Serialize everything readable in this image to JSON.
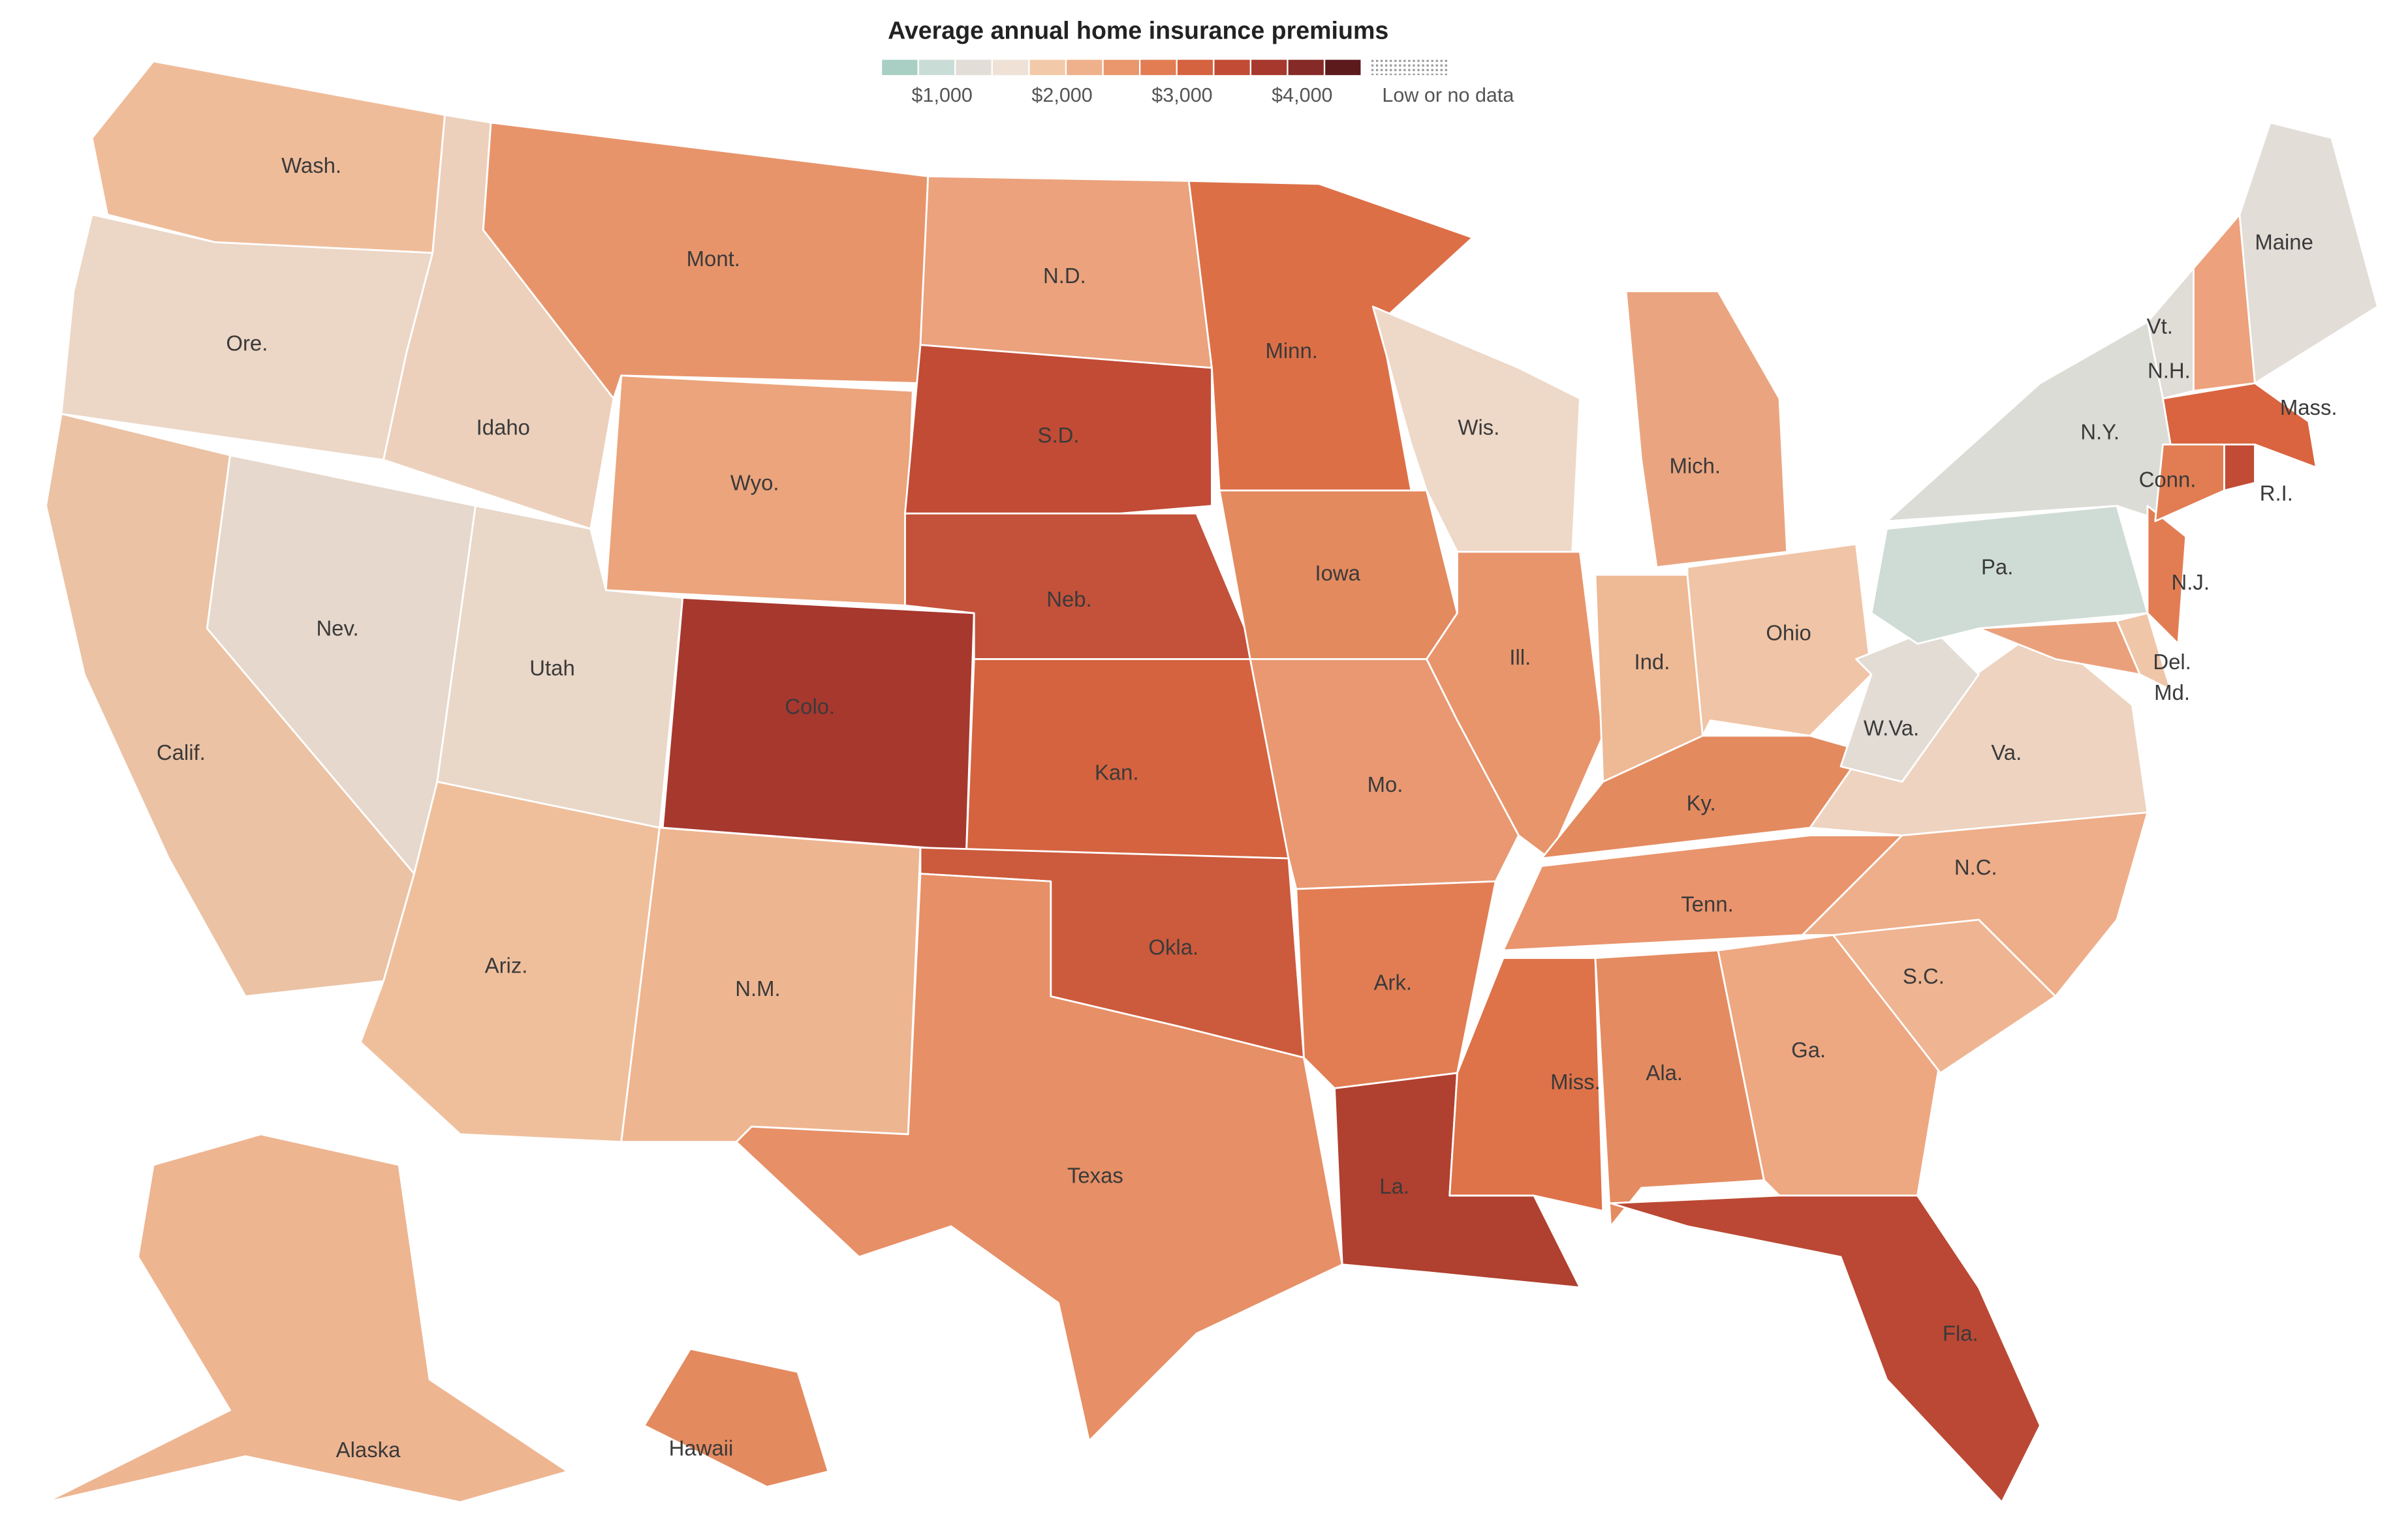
{
  "title": "Average annual home insurance premiums",
  "legend": {
    "colors": [
      "#a9cfc4",
      "#c9ddd6",
      "#e2ddd7",
      "#efe1d5",
      "#f3caa9",
      "#efb18c",
      "#ea976d",
      "#e27d53",
      "#d5633f",
      "#c14b35",
      "#a7382e",
      "#862a27",
      "#5c1a1d"
    ],
    "xlim": [
      500,
      4500
    ],
    "ticks": [
      {
        "value": 1000,
        "label": "$1,000"
      },
      {
        "value": 2000,
        "label": "$2,000"
      },
      {
        "value": 3000,
        "label": "$3,000"
      },
      {
        "value": 4000,
        "label": "$4,000"
      }
    ],
    "no_data_label": "Low or no data"
  },
  "regions": [
    {
      "label": "Wash.",
      "color": "#efbc9a"
    },
    {
      "label": "Ore.",
      "color": "#ecd6c6"
    },
    {
      "label": "Calif.",
      "color": "#ebc2a4"
    },
    {
      "label": "Nev.",
      "color": "#e6d8cc"
    },
    {
      "label": "Idaho",
      "color": "#ecd0bb"
    },
    {
      "label": "Mont.",
      "color": "#e8946b"
    },
    {
      "label": "Wyo.",
      "color": "#eba47c"
    },
    {
      "label": "Utah",
      "color": "#e9d7c8"
    },
    {
      "label": "Ariz.",
      "color": "#efbf9c"
    },
    {
      "label": "Colo.",
      "color": "#a7382e"
    },
    {
      "label": "N.M.",
      "color": "#eeb591"
    },
    {
      "label": "N.D.",
      "color": "#eba27d"
    },
    {
      "label": "S.D.",
      "color": "#c14b35"
    },
    {
      "label": "Neb.",
      "color": "#c4513a"
    },
    {
      "label": "Kan.",
      "color": "#d5633f"
    },
    {
      "label": "Okla.",
      "color": "#cc5a3c"
    },
    {
      "label": "Texas",
      "color": "#e78f66"
    },
    {
      "label": "Minn.",
      "color": "#dd6f47"
    },
    {
      "label": "Iowa",
      "color": "#e48a5f"
    },
    {
      "label": "Mo.",
      "color": "#e99872"
    },
    {
      "label": "Ark.",
      "color": "#e27d53"
    },
    {
      "label": "La.",
      "color": "#b0402f"
    },
    {
      "label": "Wis.",
      "color": "#eed8c8"
    },
    {
      "label": "Ill.",
      "color": "#e8956c"
    },
    {
      "label": "Mich.",
      "color": "#eaa580"
    },
    {
      "label": "Ind.",
      "color": "#eeb995"
    },
    {
      "label": "Ohio",
      "color": "#f0c4a6"
    },
    {
      "label": "Ky.",
      "color": "#e48a5f"
    },
    {
      "label": "Tenn.",
      "color": "#e9946c"
    },
    {
      "label": "Miss.",
      "color": "#de7249"
    },
    {
      "label": "Ala.",
      "color": "#e58b61"
    },
    {
      "label": "Ga.",
      "color": "#eda882"
    },
    {
      "label": "Fla.",
      "color": "#bb4834"
    },
    {
      "label": "S.C.",
      "color": "#efb491"
    },
    {
      "label": "N.C.",
      "color": "#eeae89"
    },
    {
      "label": "Va.",
      "color": "#edd3c0"
    },
    {
      "label": "W.Va.",
      "color": "#e3dcd5"
    },
    {
      "label": "Pa.",
      "color": "#cfdcd5"
    },
    {
      "label": "N.Y.",
      "color": "#dcdcd6"
    },
    {
      "label": "Md.",
      "color": "#eaa17b"
    },
    {
      "label": "Del.",
      "color": "#efc6a8"
    },
    {
      "label": "N.J.",
      "color": "#e27d53"
    },
    {
      "label": "Vt.",
      "color": "#e0dcd6"
    },
    {
      "label": "N.H.",
      "color": "#eda17c"
    },
    {
      "label": "Mass.",
      "color": "#d9643f"
    },
    {
      "label": "Conn.",
      "color": "#e27d53"
    },
    {
      "label": "R.I.",
      "color": "#c14b35"
    },
    {
      "label": "Maine",
      "color": "#e2ddd7"
    },
    {
      "label": "Alaska",
      "color": "#eeb591"
    },
    {
      "label": "Hawaii",
      "color": "#e48a5f"
    }
  ]
}
